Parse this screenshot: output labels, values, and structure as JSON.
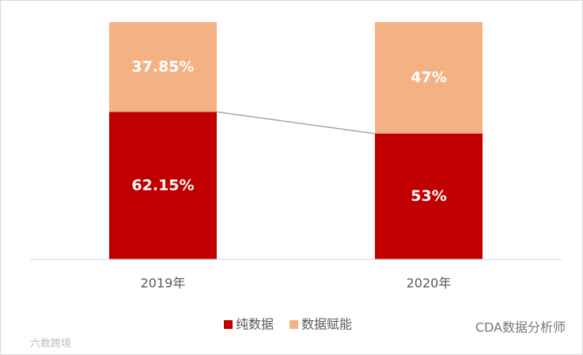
{
  "chart_data": {
    "type": "stacked_bar",
    "categories": [
      "2019年",
      "2020年"
    ],
    "series": [
      {
        "name": "纯数据",
        "color": "#c00000",
        "values": [
          62.15,
          53
        ],
        "value_labels": [
          "62.15%",
          "53%"
        ]
      },
      {
        "name": "数据赋能",
        "color": "#f4b183",
        "values": [
          37.85,
          47
        ],
        "value_labels": [
          "37.85%",
          "47%"
        ]
      }
    ],
    "ylim": [
      0,
      100
    ],
    "connector": true,
    "legend": "bottom"
  },
  "watermarks": [
    "六数跨境",
    "CDA数据分析师"
  ]
}
